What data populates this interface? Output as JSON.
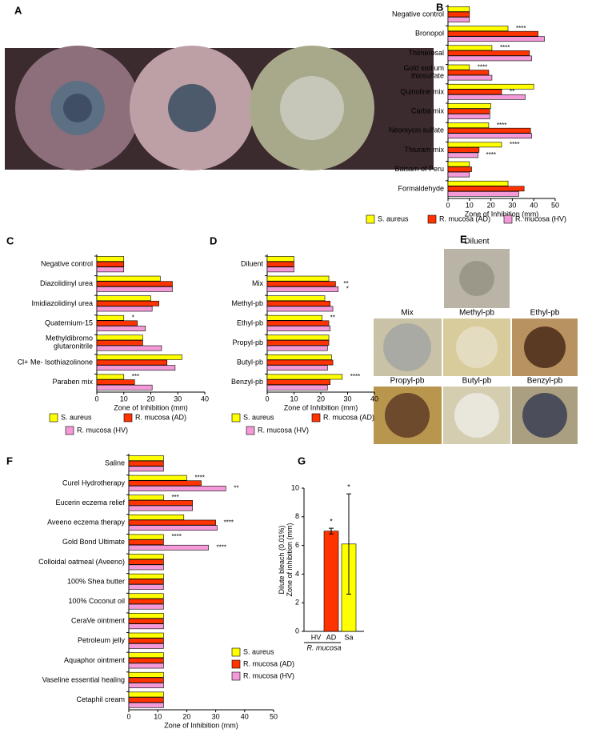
{
  "photos": [
    {
      "label": "A"
    },
    {
      "label": "E",
      "captions": [
        "Diluent",
        "Mix",
        "Methyl-pb",
        "Ethyl-pb",
        "Propyl-pb",
        "Butyl-pb",
        "Benzyl-pb"
      ]
    }
  ],
  "chart_data": [
    {
      "label": "B",
      "type": "bar",
      "orientation": "horizontal",
      "xlabel": "Zone of Inhibition (mm)",
      "categories": [
        "Negative control",
        "Bronopol",
        "Thimerosal",
        "Gold sodium\nthiosulfate",
        "Quinoline mix",
        "Carba mix",
        "Neomycin sulfate",
        "Thiuram mix",
        "Balsam of Peru",
        "Formaldehyde"
      ],
      "xlim": [
        0,
        50
      ],
      "xticks": [
        0,
        10,
        20,
        30,
        40,
        50
      ],
      "series": [
        {
          "name": "S. aureus",
          "color": "#ffff00",
          "values": [
            10,
            28,
            20.5,
            10,
            40,
            20,
            19,
            25,
            10,
            28
          ],
          "significance": [
            null,
            "****",
            "****",
            "****",
            null,
            null,
            "****",
            "****",
            null,
            null
          ]
        },
        {
          "name": "R. mucosa (AD)",
          "color": "#ff3300",
          "values": [
            10,
            42,
            38,
            19,
            25,
            19.5,
            38.5,
            14.5,
            11,
            35.5
          ],
          "significance": [
            null,
            null,
            null,
            null,
            "**",
            null,
            null,
            null,
            null,
            null
          ]
        },
        {
          "name": "R. mucosa (HV)",
          "color": "#f49ad8",
          "values": [
            10,
            45,
            39,
            20.5,
            36,
            19.5,
            39,
            14,
            10,
            33
          ],
          "significance": [
            null,
            null,
            null,
            null,
            null,
            null,
            null,
            "****",
            null,
            null
          ]
        }
      ]
    },
    {
      "label": "C",
      "type": "bar",
      "orientation": "horizontal",
      "xlabel": "Zone of Inhibition (mm)",
      "categories": [
        "Negative control",
        "Diazolidinyl urea",
        "Imidiazolidinyl urea",
        "Quaternium-15",
        "Methyldibromo\nglutaronitrile",
        "Cl+ Me- Isothiazolinone",
        "Paraben mix"
      ],
      "xlim": [
        0,
        40
      ],
      "xticks": [
        0,
        10,
        20,
        30,
        40
      ],
      "series": [
        {
          "name": "S. aureus",
          "color": "#ffff00",
          "values": [
            10,
            23.5,
            20,
            10,
            17,
            31.5,
            10
          ],
          "significance": [
            null,
            null,
            null,
            "*",
            null,
            null,
            "***"
          ]
        },
        {
          "name": "R. mucosa (AD)",
          "color": "#ff3300",
          "values": [
            10,
            28,
            23,
            15,
            17,
            26,
            14
          ],
          "significance": [
            null,
            null,
            null,
            null,
            null,
            null,
            null
          ]
        },
        {
          "name": "R. mucosa (HV)",
          "color": "#f49ad8",
          "values": [
            10,
            28,
            20.5,
            18,
            24,
            29,
            20.5
          ],
          "significance": [
            null,
            null,
            null,
            null,
            null,
            null,
            null
          ]
        }
      ]
    },
    {
      "label": "D",
      "type": "bar",
      "orientation": "horizontal",
      "xlabel": "Zone of Inhibition (mm)",
      "categories": [
        "Diluent",
        "Mix",
        "Methyl-pb",
        "Ethyl-pb",
        "Propyl-pb",
        "Butyl-pb",
        "Benzyl-pb"
      ],
      "xlim": [
        0,
        40
      ],
      "xticks": [
        0,
        10,
        20,
        30,
        40
      ],
      "series": [
        {
          "name": "S. aureus",
          "color": "#ffff00",
          "values": [
            10,
            23,
            21.5,
            20.5,
            23,
            24,
            28
          ],
          "significance": [
            null,
            null,
            null,
            "**",
            null,
            null,
            "****"
          ]
        },
        {
          "name": "R. mucosa (AD)",
          "color": "#ff3300",
          "values": [
            10,
            25.5,
            23.5,
            23,
            23,
            24.5,
            23.5
          ],
          "significance": [
            null,
            "**",
            null,
            null,
            null,
            null,
            null
          ]
        },
        {
          "name": "R. mucosa (HV)",
          "color": "#f49ad8",
          "values": [
            10,
            26.5,
            24.5,
            23.5,
            22.5,
            22.5,
            22.5
          ],
          "significance": [
            null,
            "*",
            null,
            null,
            null,
            null,
            null
          ]
        }
      ]
    },
    {
      "label": "F",
      "type": "bar",
      "orientation": "horizontal",
      "xlabel": "Zone of Inhibition (mm)",
      "categories": [
        "Saline",
        "Curel Hydrotherapy",
        "Eucerin eczema relief",
        "Aveeno eczema therapy",
        "Gold Bond Ultimate",
        "Colloidal oatmeal (Aveeno)",
        "100% Shea butter",
        "100% Coconut oil",
        "CeraVe ointment",
        "Petroleum jelly",
        "Aquaphor ointment",
        "Vaseline essential healing",
        "Cetaphil cream"
      ],
      "xlim": [
        0,
        50
      ],
      "xticks": [
        0,
        10,
        20,
        30,
        40,
        50
      ],
      "series": [
        {
          "name": "S. aureus",
          "color": "#ffff00",
          "values": [
            12,
            20,
            12,
            19,
            12,
            12,
            12,
            12,
            12,
            12,
            12,
            12,
            12
          ],
          "significance": [
            null,
            "****",
            "***",
            null,
            "****",
            null,
            null,
            null,
            null,
            null,
            null,
            null,
            null
          ]
        },
        {
          "name": "R. mucosa (AD)",
          "color": "#ff3300",
          "values": [
            12,
            25,
            22,
            30,
            12,
            12,
            12,
            12,
            12,
            12,
            12,
            12,
            12
          ],
          "significance": [
            null,
            null,
            null,
            "****",
            null,
            null,
            null,
            null,
            null,
            null,
            null,
            null,
            null
          ]
        },
        {
          "name": "R. mucosa (HV)",
          "color": "#f49ad8",
          "values": [
            12,
            33.5,
            22,
            30.5,
            27.5,
            12,
            12,
            12,
            12,
            12,
            12,
            12,
            12
          ],
          "significance": [
            null,
            "**",
            null,
            null,
            "****",
            null,
            null,
            null,
            null,
            null,
            null,
            null,
            null
          ]
        }
      ]
    },
    {
      "label": "G",
      "type": "bar",
      "orientation": "vertical",
      "ylabel": "Dilute bleach (0.01%)\nZone of inhibition (mm)",
      "categories": [
        "HV",
        "AD",
        "Sa"
      ],
      "group_label": "R. mucosa",
      "values": [
        0,
        7,
        6.1
      ],
      "errors": [
        0,
        0.2,
        3.5
      ],
      "colors": [
        "#ff3300",
        "#ff3300",
        "#ffff00"
      ],
      "significance": [
        null,
        "*",
        "*"
      ],
      "ylim": [
        0,
        10
      ],
      "yticks": [
        0,
        2,
        4,
        6,
        8,
        10
      ]
    }
  ]
}
